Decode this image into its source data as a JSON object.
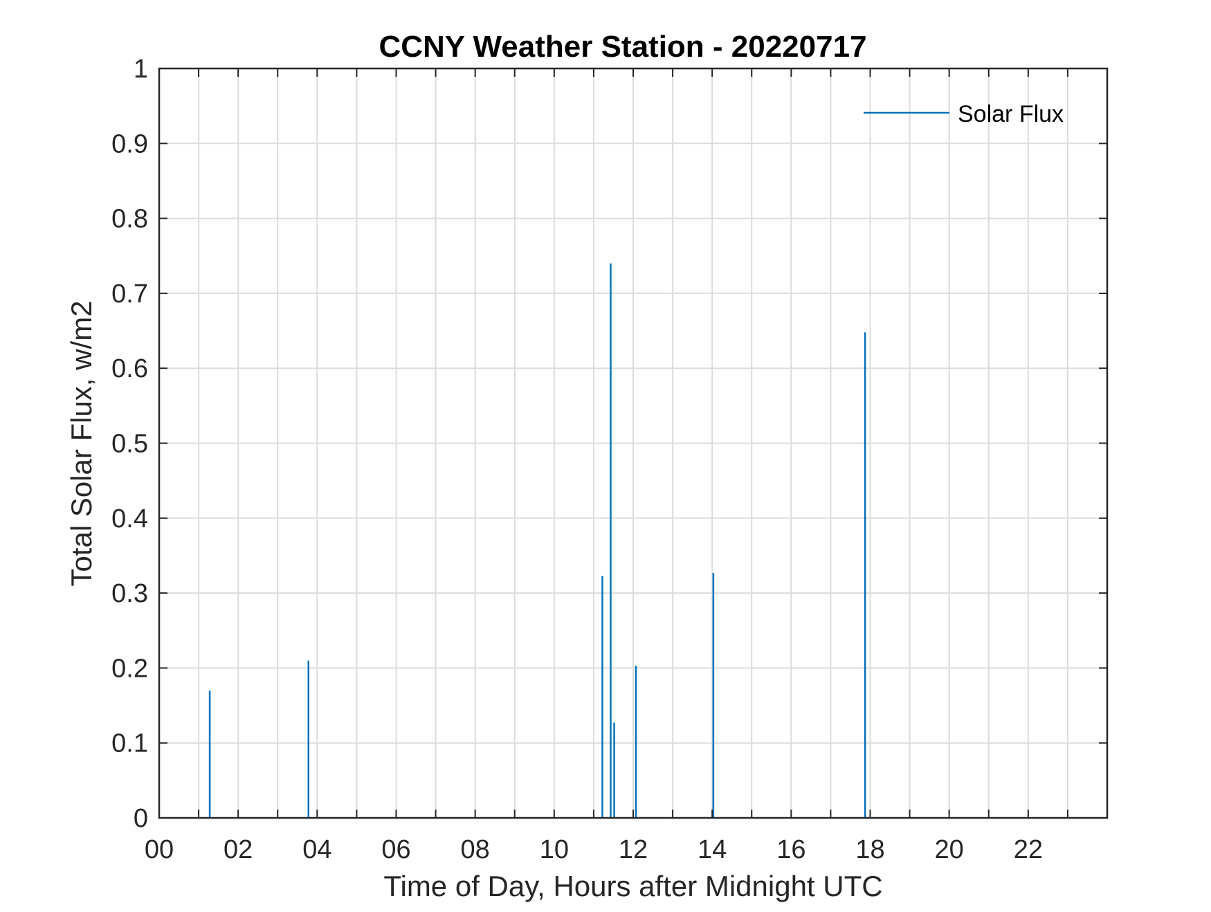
{
  "chart_data": {
    "type": "line",
    "title": "CCNY Weather Station - 20220717",
    "xlabel": "Time of Day, Hours after Midnight UTC",
    "ylabel": "Total Solar Flux, w/m2",
    "xlim": [
      0,
      24
    ],
    "ylim": [
      0,
      1
    ],
    "grid": true,
    "legend_position": "top-right",
    "xtick_labels": [
      "00",
      "02",
      "04",
      "06",
      "08",
      "10",
      "12",
      "14",
      "16",
      "18",
      "20",
      "22"
    ],
    "ytick_labels": [
      "0",
      "0.1",
      "0.2",
      "0.3",
      "0.4",
      "0.5",
      "0.6",
      "0.7",
      "0.8",
      "0.9",
      "1"
    ],
    "series": [
      {
        "name": "Solar Flux",
        "color": "#0072BD",
        "spikes": [
          {
            "x": 1.28,
            "y": 0.17
          },
          {
            "x": 3.78,
            "y": 0.21
          },
          {
            "x": 11.22,
            "y": 0.323
          },
          {
            "x": 11.43,
            "y": 0.74
          },
          {
            "x": 11.52,
            "y": 0.127
          },
          {
            "x": 12.07,
            "y": 0.203
          },
          {
            "x": 14.03,
            "y": 0.327
          },
          {
            "x": 17.87,
            "y": 0.648
          }
        ]
      }
    ]
  }
}
